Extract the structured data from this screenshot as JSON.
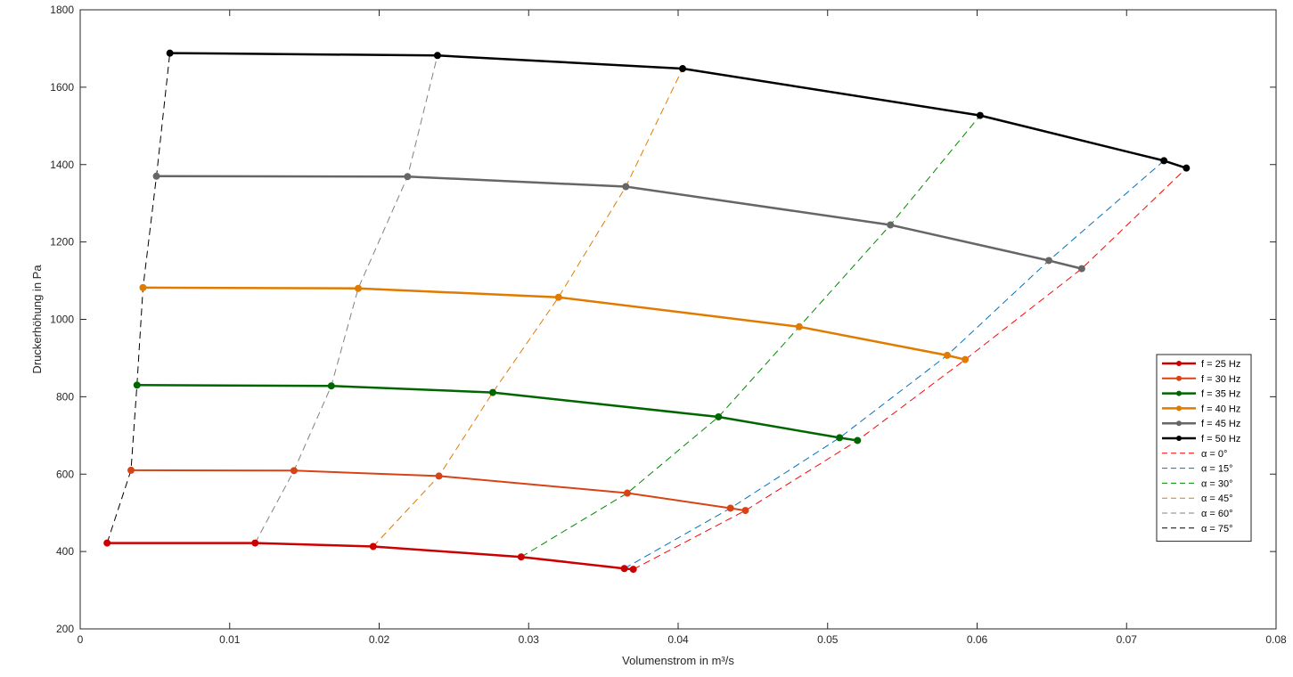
{
  "chart_data": {
    "type": "line",
    "xlabel": "Volumenstrom in m³/s",
    "ylabel": "Druckerhöhung in Pa",
    "xlim": [
      0,
      0.08
    ],
    "ylim": [
      200,
      1800
    ],
    "xticks": [
      0,
      0.01,
      0.02,
      0.03,
      0.04,
      0.05,
      0.06,
      0.07,
      0.08
    ],
    "xtick_labels": [
      "0",
      "0.01",
      "0.02",
      "0.03",
      "0.04",
      "0.05",
      "0.06",
      "0.07",
      "0.08"
    ],
    "yticks": [
      200,
      400,
      600,
      800,
      1000,
      1200,
      1400,
      1600,
      1800
    ],
    "ytick_labels": [
      "200",
      "400",
      "600",
      "800",
      "1000",
      "1200",
      "1400",
      "1600",
      "1800"
    ],
    "grid": false,
    "legend_position": "right",
    "series": [
      {
        "name": "f = 25 Hz",
        "style": "solid",
        "color": "#cc0000",
        "width": 2.5,
        "x": [
          0.0018,
          0.0117,
          0.0196,
          0.0295,
          0.0364,
          0.037
        ],
        "y": [
          422,
          422,
          413,
          386,
          356,
          354
        ]
      },
      {
        "name": "f = 30 Hz",
        "style": "solid",
        "color": "#d84315",
        "width": 2,
        "x": [
          0.0034,
          0.0143,
          0.024,
          0.0366,
          0.0435,
          0.0445
        ],
        "y": [
          610,
          609,
          595,
          551,
          512,
          506
        ]
      },
      {
        "name": "f = 35 Hz",
        "style": "solid",
        "color": "#006600",
        "width": 2.5,
        "x": [
          0.0038,
          0.0168,
          0.0276,
          0.0427,
          0.0508,
          0.052
        ],
        "y": [
          830,
          828,
          811,
          748,
          694,
          687
        ]
      },
      {
        "name": "f = 40 Hz",
        "style": "solid",
        "color": "#e07b00",
        "width": 2.5,
        "x": [
          0.0042,
          0.0186,
          0.032,
          0.0481,
          0.058,
          0.0592
        ],
        "y": [
          1082,
          1080,
          1057,
          981,
          907,
          896
        ]
      },
      {
        "name": "f = 45 Hz",
        "style": "solid",
        "color": "#666666",
        "width": 2.5,
        "x": [
          0.0051,
          0.0219,
          0.0365,
          0.0542,
          0.0648,
          0.067
        ],
        "y": [
          1370,
          1369,
          1343,
          1244,
          1152,
          1131
        ]
      },
      {
        "name": "f = 50 Hz",
        "style": "solid",
        "color": "#000000",
        "width": 2.5,
        "x": [
          0.006,
          0.0239,
          0.0403,
          0.0602,
          0.0725,
          0.074
        ],
        "y": [
          1688,
          1682,
          1648,
          1527,
          1410,
          1391
        ]
      },
      {
        "name": "α = 0°",
        "style": "dashed",
        "color": "#ff0000",
        "width": 1,
        "x": [
          0.037,
          0.0445,
          0.052,
          0.0592,
          0.067,
          0.074
        ],
        "y": [
          354,
          506,
          687,
          896,
          1131,
          1391
        ]
      },
      {
        "name": "α = 15°",
        "style": "dashed",
        "color": "#0072bd",
        "width": 1,
        "x": [
          0.0364,
          0.0435,
          0.0508,
          0.058,
          0.0648,
          0.0725
        ],
        "y": [
          356,
          512,
          694,
          907,
          1152,
          1410
        ]
      },
      {
        "name": "α = 30°",
        "style": "dashed",
        "color": "#008800",
        "width": 1,
        "x": [
          0.0295,
          0.0366,
          0.0427,
          0.0481,
          0.0542,
          0.0602
        ],
        "y": [
          386,
          551,
          748,
          981,
          1244,
          1527
        ]
      },
      {
        "name": "α = 45°",
        "style": "dashed",
        "color": "#e07b00",
        "width": 1,
        "x": [
          0.0196,
          0.024,
          0.0276,
          0.032,
          0.0365,
          0.0403
        ],
        "y": [
          413,
          595,
          811,
          1057,
          1343,
          1648
        ]
      },
      {
        "name": "α = 60°",
        "style": "dashed",
        "color": "#808080",
        "width": 1,
        "x": [
          0.0117,
          0.0143,
          0.0168,
          0.0186,
          0.0219,
          0.0239
        ],
        "y": [
          422,
          609,
          828,
          1080,
          1369,
          1682
        ]
      },
      {
        "name": "α = 75°",
        "style": "dashed",
        "color": "#000000",
        "width": 1,
        "x": [
          0.0018,
          0.0034,
          0.0038,
          0.0042,
          0.0051,
          0.006
        ],
        "y": [
          422,
          610,
          830,
          1082,
          1370,
          1688
        ]
      }
    ]
  }
}
